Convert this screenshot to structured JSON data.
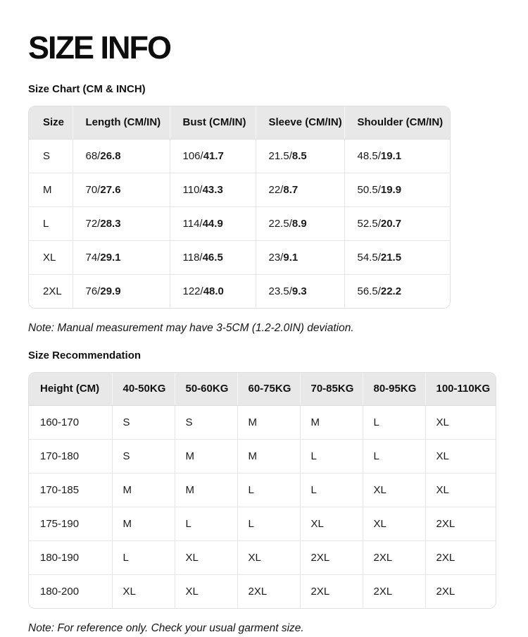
{
  "title": "SIZE INFO",
  "size_chart": {
    "heading": "Size Chart (CM & INCH)",
    "columns": [
      "Size",
      "Length (CM/IN)",
      "Bust (CM/IN)",
      "Sleeve (CM/IN)",
      "Shoulder (CM/IN)"
    ],
    "rows": [
      {
        "size": "S",
        "measurements": [
          [
            "68",
            "26.8"
          ],
          [
            "106",
            "41.7"
          ],
          [
            "21.5",
            "8.5"
          ],
          [
            "48.5",
            "19.1"
          ]
        ]
      },
      {
        "size": "M",
        "measurements": [
          [
            "70",
            "27.6"
          ],
          [
            "110",
            "43.3"
          ],
          [
            "22",
            "8.7"
          ],
          [
            "50.5",
            "19.9"
          ]
        ]
      },
      {
        "size": "L",
        "measurements": [
          [
            "72",
            "28.3"
          ],
          [
            "114",
            "44.9"
          ],
          [
            "22.5",
            "8.9"
          ],
          [
            "52.5",
            "20.7"
          ]
        ]
      },
      {
        "size": "XL",
        "measurements": [
          [
            "74",
            "29.1"
          ],
          [
            "118",
            "46.5"
          ],
          [
            "23",
            "9.1"
          ],
          [
            "54.5",
            "21.5"
          ]
        ]
      },
      {
        "size": "2XL",
        "measurements": [
          [
            "76",
            "29.9"
          ],
          [
            "122",
            "48.0"
          ],
          [
            "23.5",
            "9.3"
          ],
          [
            "56.5",
            "22.2"
          ]
        ]
      }
    ],
    "note": "Note: Manual measurement may have 3-5CM (1.2-2.0IN) deviation."
  },
  "size_recommendation": {
    "heading": "Size Recommendation",
    "columns": [
      "Height (CM)",
      "40-50KG",
      "50-60KG",
      "60-75KG",
      "70-85KG",
      "80-95KG",
      "100-110KG"
    ],
    "rows": [
      {
        "height": "160-170",
        "sizes": [
          "S",
          "S",
          "M",
          "M",
          "L",
          "XL"
        ]
      },
      {
        "height": "170-180",
        "sizes": [
          "S",
          "M",
          "M",
          "L",
          "L",
          "XL"
        ]
      },
      {
        "height": "170-185",
        "sizes": [
          "M",
          "M",
          "L",
          "L",
          "XL",
          "XL"
        ]
      },
      {
        "height": "175-190",
        "sizes": [
          "M",
          "L",
          "L",
          "XL",
          "XL",
          "2XL"
        ]
      },
      {
        "height": "180-190",
        "sizes": [
          "L",
          "XL",
          "XL",
          "2XL",
          "2XL",
          "2XL"
        ]
      },
      {
        "height": "180-200",
        "sizes": [
          "XL",
          "XL",
          "2XL",
          "2XL",
          "2XL",
          "2XL"
        ]
      }
    ],
    "note": "Note: For reference only. Check your usual garment size."
  },
  "colors": {
    "header_bg": "#e8e8e8",
    "border": "#e0e0e0",
    "text": "#1a1a1a"
  }
}
